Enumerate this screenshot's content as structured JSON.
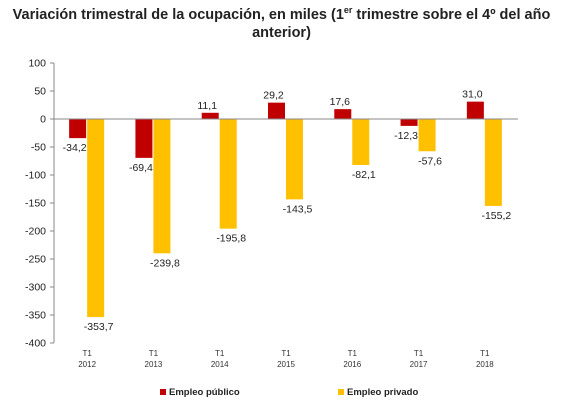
{
  "chart_data": {
    "type": "bar",
    "title_part1": "Variación trimestral de la ocupación, en miles  (1",
    "title_sup": "er",
    "title_part2": " trimestre sobre el 4º del año",
    "title_line2": "anterior)",
    "categories": [
      [
        "T1",
        "2012"
      ],
      [
        "T1",
        "2013"
      ],
      [
        "T1",
        "2014"
      ],
      [
        "T1",
        "2015"
      ],
      [
        "T1",
        "2016"
      ],
      [
        "T1",
        "2017"
      ],
      [
        "T1",
        "2018"
      ]
    ],
    "series": [
      {
        "name": "Empleo público",
        "color": "#c00000",
        "values": [
          -34.2,
          -69.4,
          11.1,
          29.2,
          17.6,
          -12.3,
          31.0
        ],
        "labels": [
          "-34,2",
          "-69,4",
          "11,1",
          "29,2",
          "17,6",
          "-12,3",
          "31,0"
        ]
      },
      {
        "name": "Empleo privado",
        "color": "#ffc000",
        "values": [
          -353.7,
          -239.8,
          -195.8,
          -143.5,
          -82.1,
          -57.6,
          -155.2
        ],
        "labels": [
          "-353,7",
          "-239,8",
          "-195,8",
          "-143,5",
          "-82,1",
          "-57,6",
          "-155,2"
        ]
      }
    ],
    "ylim": [
      -400,
      100
    ],
    "yticks": [
      100,
      50,
      0,
      -50,
      -100,
      -150,
      -200,
      -250,
      -300,
      -350,
      -400
    ],
    "grid": false,
    "legend_position": "bottom"
  }
}
